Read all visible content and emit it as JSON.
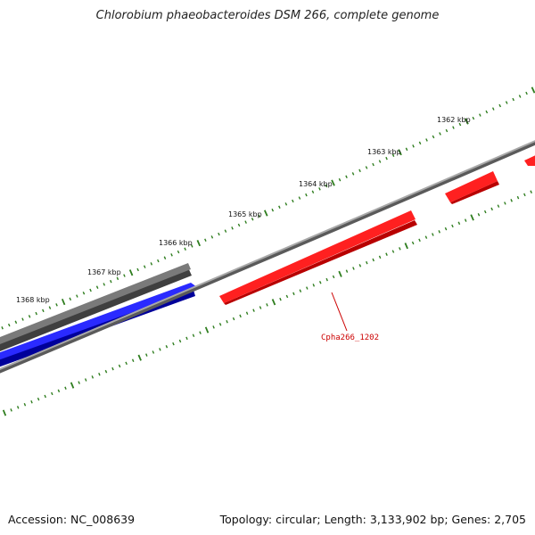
{
  "title": "Chlorobium phaeobacteroides DSM 266, complete genome",
  "footer": {
    "accession": "Accession: NC_008639",
    "summary": "Topology: circular; Length: 3,133,902 bp; Genes: 2,705"
  },
  "scale_labels": [
    "1362 kbp",
    "1363 kbp",
    "1364 kbp",
    "1365 kbp",
    "1366 kbp",
    "1367 kbp",
    "1368 kbp"
  ],
  "gene_labels": [
    "Cpha266_1202"
  ],
  "colors": {
    "forward_strand_gene": "#ff0000",
    "reverse_strand_gene": "#0000ee",
    "other_feature": "#666666",
    "backbone": "#808080",
    "tick": "#2e7d1e"
  }
}
